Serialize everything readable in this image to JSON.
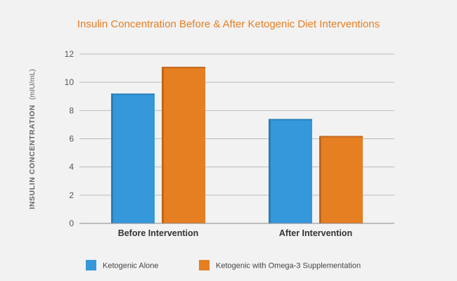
{
  "chart_data": {
    "type": "bar",
    "title": "Insulin Concentration Before & After Ketogenic Diet Interventions",
    "ylabel_bold": "INSULIN CONCENTRATION",
    "ylabel_unit": "(mIU/mL)",
    "xlabel": "",
    "categories": [
      "Before Intervention",
      "After Intervention"
    ],
    "series": [
      {
        "name": "Ketogenic Alone",
        "values": [
          9.2,
          7.4
        ],
        "color": "#3498db"
      },
      {
        "name": "Ketogenic with Omega-3 Supplementation",
        "values": [
          11.1,
          6.2
        ],
        "color": "#e67e22"
      }
    ],
    "ylim": [
      0,
      12
    ],
    "yticks": [
      0,
      2,
      4,
      6,
      8,
      10,
      12
    ],
    "grid": true,
    "legend_position": "bottom-left",
    "colors": {
      "title": "#e67e22",
      "grid": "#bbbbbb",
      "axis": "#888888",
      "background": "#f2f2f2"
    }
  }
}
